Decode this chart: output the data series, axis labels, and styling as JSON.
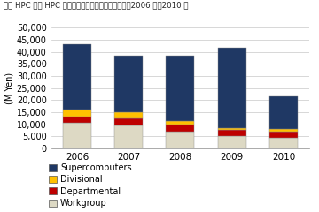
{
  "title": "国内 HPC 市場 HPC サーバーシステム別出荷額実績、2006 年～2010 年",
  "years": [
    2006,
    2007,
    2008,
    2009,
    2010
  ],
  "series": {
    "Workgroup": [
      10500,
      9500,
      7000,
      5000,
      4500
    ],
    "Departmental": [
      2500,
      3000,
      3000,
      2500,
      2500
    ],
    "Divisional": [
      3000,
      2500,
      1500,
      1000,
      1000
    ],
    "Supercomputers": [
      27000,
      23500,
      27000,
      33000,
      13500
    ]
  },
  "colors": {
    "Workgroup": "#ddd9c4",
    "Departmental": "#be0000",
    "Divisional": "#ffc000",
    "Supercomputers": "#1f3864"
  },
  "ylabel": "(M Yen)",
  "ylim": [
    0,
    50000
  ],
  "yticks": [
    0,
    5000,
    10000,
    15000,
    20000,
    25000,
    30000,
    35000,
    40000,
    45000,
    50000
  ],
  "stack_order": [
    "Workgroup",
    "Departmental",
    "Divisional",
    "Supercomputers"
  ],
  "legend_order": [
    "Supercomputers",
    "Divisional",
    "Departmental",
    "Workgroup"
  ],
  "bg_color": "#ffffff",
  "grid_color": "#c8c8c8",
  "bar_width": 0.55,
  "bar_edge_color": "#888888",
  "bar_edge_width": 0.3
}
